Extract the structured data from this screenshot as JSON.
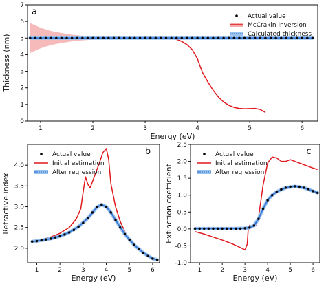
{
  "chart_data": [
    {
      "panel": "a",
      "type": "line",
      "xlabel": "Energy (eV)",
      "ylabel": "Thickness (nm)",
      "xlim": [
        0.75,
        6.3
      ],
      "ylim": [
        0,
        7
      ],
      "xticks": [
        1,
        2,
        3,
        4,
        5,
        6
      ],
      "yticks": [
        0,
        1,
        2,
        3,
        4,
        5,
        6,
        7
      ],
      "legend_position": "top-right",
      "series": [
        {
          "name": "Actual value",
          "style": "dots",
          "color": "#000000",
          "x": [
            0.8,
            0.9,
            1.0,
            1.1,
            1.2,
            1.3,
            1.4,
            1.5,
            1.6,
            1.7,
            1.8,
            1.9,
            2.0,
            2.1,
            2.2,
            2.3,
            2.4,
            2.5,
            2.6,
            2.7,
            2.8,
            2.9,
            3.0,
            3.1,
            3.2,
            3.3,
            3.4,
            3.5,
            3.6,
            3.7,
            3.8,
            3.9,
            4.0,
            4.1,
            4.2,
            4.3,
            4.4,
            4.5,
            4.6,
            4.7,
            4.8,
            4.9,
            5.0,
            5.1,
            5.2,
            5.3,
            5.4,
            5.5,
            5.6,
            5.7,
            5.8,
            5.9,
            6.0,
            6.1,
            6.2
          ],
          "y": [
            5,
            5,
            5,
            5,
            5,
            5,
            5,
            5,
            5,
            5,
            5,
            5,
            5,
            5,
            5,
            5,
            5,
            5,
            5,
            5,
            5,
            5,
            5,
            5,
            5,
            5,
            5,
            5,
            5,
            5,
            5,
            5,
            5,
            5,
            5,
            5,
            5,
            5,
            5,
            5,
            5,
            5,
            5,
            5,
            5,
            5,
            5,
            5,
            5,
            5,
            5,
            5,
            5,
            5,
            5
          ]
        },
        {
          "name": "McCrakin inversion",
          "style": "line",
          "color": "#e0191e",
          "x": [
            0.8,
            3.0,
            3.3,
            3.5,
            3.6,
            3.7,
            3.8,
            3.9,
            4.0,
            4.05,
            4.1,
            4.2,
            4.3,
            4.4,
            4.5,
            4.6,
            4.7,
            4.8,
            4.9,
            5.0,
            5.1,
            5.2,
            5.25,
            5.3
          ],
          "y": [
            5.0,
            5.0,
            5.0,
            4.98,
            4.92,
            4.8,
            4.6,
            4.3,
            3.75,
            3.3,
            2.9,
            2.35,
            1.85,
            1.45,
            1.15,
            0.95,
            0.82,
            0.76,
            0.74,
            0.75,
            0.76,
            0.7,
            0.6,
            0.52
          ],
          "band": {
            "x": [
              0.8,
              1.0,
              1.2,
              1.4,
              1.6,
              1.8,
              2.0,
              2.3,
              2.6,
              3.0
            ],
            "upper": [
              5.9,
              5.62,
              5.42,
              5.3,
              5.2,
              5.14,
              5.1,
              5.06,
              5.03,
              5.0
            ],
            "lower": [
              4.1,
              4.38,
              4.58,
              4.7,
              4.8,
              4.86,
              4.9,
              4.94,
              4.97,
              5.0
            ]
          }
        },
        {
          "name": "Calculated thickness",
          "style": "band",
          "color": "#3a7bd5",
          "x": [
            0.8,
            6.2
          ],
          "y": [
            5,
            5
          ]
        }
      ]
    },
    {
      "panel": "b",
      "type": "line",
      "xlabel": "Energy (eV)",
      "ylabel": "Refractive index",
      "xlim": [
        0.6,
        6.3
      ],
      "ylim": [
        1.65,
        4.5
      ],
      "xticks": [
        1,
        2,
        3,
        4,
        5,
        6
      ],
      "yticks": [
        2.0,
        2.5,
        3.0,
        3.5,
        4.0
      ],
      "legend_position": "top-left",
      "series": [
        {
          "name": "Actual value",
          "style": "dots",
          "color": "#000000",
          "x": [
            0.8,
            1.0,
            1.2,
            1.4,
            1.6,
            1.8,
            2.0,
            2.2,
            2.4,
            2.6,
            2.8,
            3.0,
            3.2,
            3.4,
            3.6,
            3.8,
            4.0,
            4.2,
            4.4,
            4.6,
            4.8,
            5.0,
            5.2,
            5.4,
            5.6,
            5.8,
            6.0,
            6.2
          ],
          "y": [
            2.16,
            2.17,
            2.19,
            2.21,
            2.23,
            2.26,
            2.29,
            2.33,
            2.38,
            2.44,
            2.52,
            2.61,
            2.72,
            2.86,
            2.99,
            3.05,
            3.0,
            2.86,
            2.68,
            2.5,
            2.34,
            2.2,
            2.08,
            1.98,
            1.89,
            1.81,
            1.75,
            1.72
          ]
        },
        {
          "name": "Initial estimation",
          "style": "line",
          "color": "#e0191e",
          "x": [
            0.8,
            1.2,
            1.6,
            2.0,
            2.4,
            2.7,
            2.9,
            3.0,
            3.1,
            3.2,
            3.3,
            3.5,
            3.7,
            3.85,
            4.0,
            4.1,
            4.2,
            4.4,
            4.6,
            4.8,
            5.0,
            5.2,
            5.4,
            5.6,
            5.8,
            6.0,
            6.2
          ],
          "y": [
            2.17,
            2.21,
            2.27,
            2.36,
            2.5,
            2.7,
            2.95,
            3.35,
            3.72,
            3.55,
            3.45,
            3.75,
            4.05,
            4.3,
            4.4,
            4.15,
            3.55,
            3.0,
            2.65,
            2.4,
            2.2,
            2.05,
            1.95,
            1.87,
            1.8,
            1.75,
            1.72
          ]
        },
        {
          "name": "After regression",
          "style": "band",
          "color": "#3a7bd5",
          "x": [
            0.8,
            1.2,
            1.6,
            2.0,
            2.4,
            2.8,
            3.2,
            3.6,
            3.8,
            4.0,
            4.2,
            4.4,
            4.8,
            5.2,
            5.6,
            6.0,
            6.2
          ],
          "y": [
            2.16,
            2.19,
            2.23,
            2.29,
            2.38,
            2.52,
            2.72,
            2.99,
            3.05,
            3.0,
            2.86,
            2.68,
            2.34,
            2.08,
            1.89,
            1.75,
            1.72
          ]
        }
      ]
    },
    {
      "panel": "c",
      "type": "line",
      "xlabel": "Energy (eV)",
      "ylabel": "Extinction coefficient",
      "xlim": [
        0.6,
        6.3
      ],
      "ylim": [
        -1.0,
        2.5
      ],
      "xticks": [
        1,
        2,
        3,
        4,
        5,
        6
      ],
      "yticks": [
        -1.0,
        -0.5,
        0.0,
        0.5,
        1.0,
        1.5,
        2.0,
        2.5
      ],
      "legend_position": "top-left",
      "series": [
        {
          "name": "Actual value",
          "style": "dots",
          "color": "#000000",
          "x": [
            0.8,
            1.0,
            1.2,
            1.4,
            1.6,
            1.8,
            2.0,
            2.2,
            2.4,
            2.6,
            2.8,
            3.0,
            3.2,
            3.4,
            3.6,
            3.8,
            4.0,
            4.2,
            4.4,
            4.6,
            4.8,
            5.0,
            5.2,
            5.4,
            5.6,
            5.8,
            6.0,
            6.2
          ],
          "y": [
            0.01,
            0.01,
            0.01,
            0.01,
            0.01,
            0.01,
            0.01,
            0.01,
            0.01,
            0.01,
            0.01,
            0.02,
            0.04,
            0.1,
            0.3,
            0.6,
            0.85,
            1.0,
            1.1,
            1.17,
            1.22,
            1.25,
            1.26,
            1.25,
            1.22,
            1.18,
            1.12,
            1.07
          ]
        },
        {
          "name": "Initial estimation",
          "style": "line",
          "color": "#e0191e",
          "x": [
            0.8,
            1.2,
            1.6,
            2.0,
            2.4,
            2.8,
            3.0,
            3.1,
            3.15,
            3.2,
            3.3,
            3.5,
            3.6,
            3.8,
            4.0,
            4.2,
            4.4,
            4.6,
            4.8,
            5.0,
            5.2,
            5.4,
            5.6,
            5.8,
            6.0,
            6.2
          ],
          "y": [
            -0.08,
            -0.15,
            -0.24,
            -0.33,
            -0.43,
            -0.55,
            -0.62,
            -0.45,
            0.05,
            0.1,
            0.08,
            0.1,
            0.35,
            1.3,
            1.95,
            2.13,
            2.1,
            2.0,
            2.0,
            2.05,
            2.0,
            1.95,
            1.9,
            1.85,
            1.8,
            1.76
          ]
        },
        {
          "name": "After regression",
          "style": "band",
          "color": "#3a7bd5",
          "x": [
            0.8,
            1.6,
            2.4,
            3.0,
            3.2,
            3.4,
            3.6,
            3.8,
            4.0,
            4.2,
            4.4,
            4.8,
            5.2,
            5.6,
            6.0,
            6.2
          ],
          "y": [
            0.01,
            0.01,
            0.01,
            0.02,
            0.04,
            0.1,
            0.3,
            0.6,
            0.85,
            1.0,
            1.1,
            1.22,
            1.26,
            1.22,
            1.12,
            1.07
          ]
        }
      ]
    }
  ]
}
